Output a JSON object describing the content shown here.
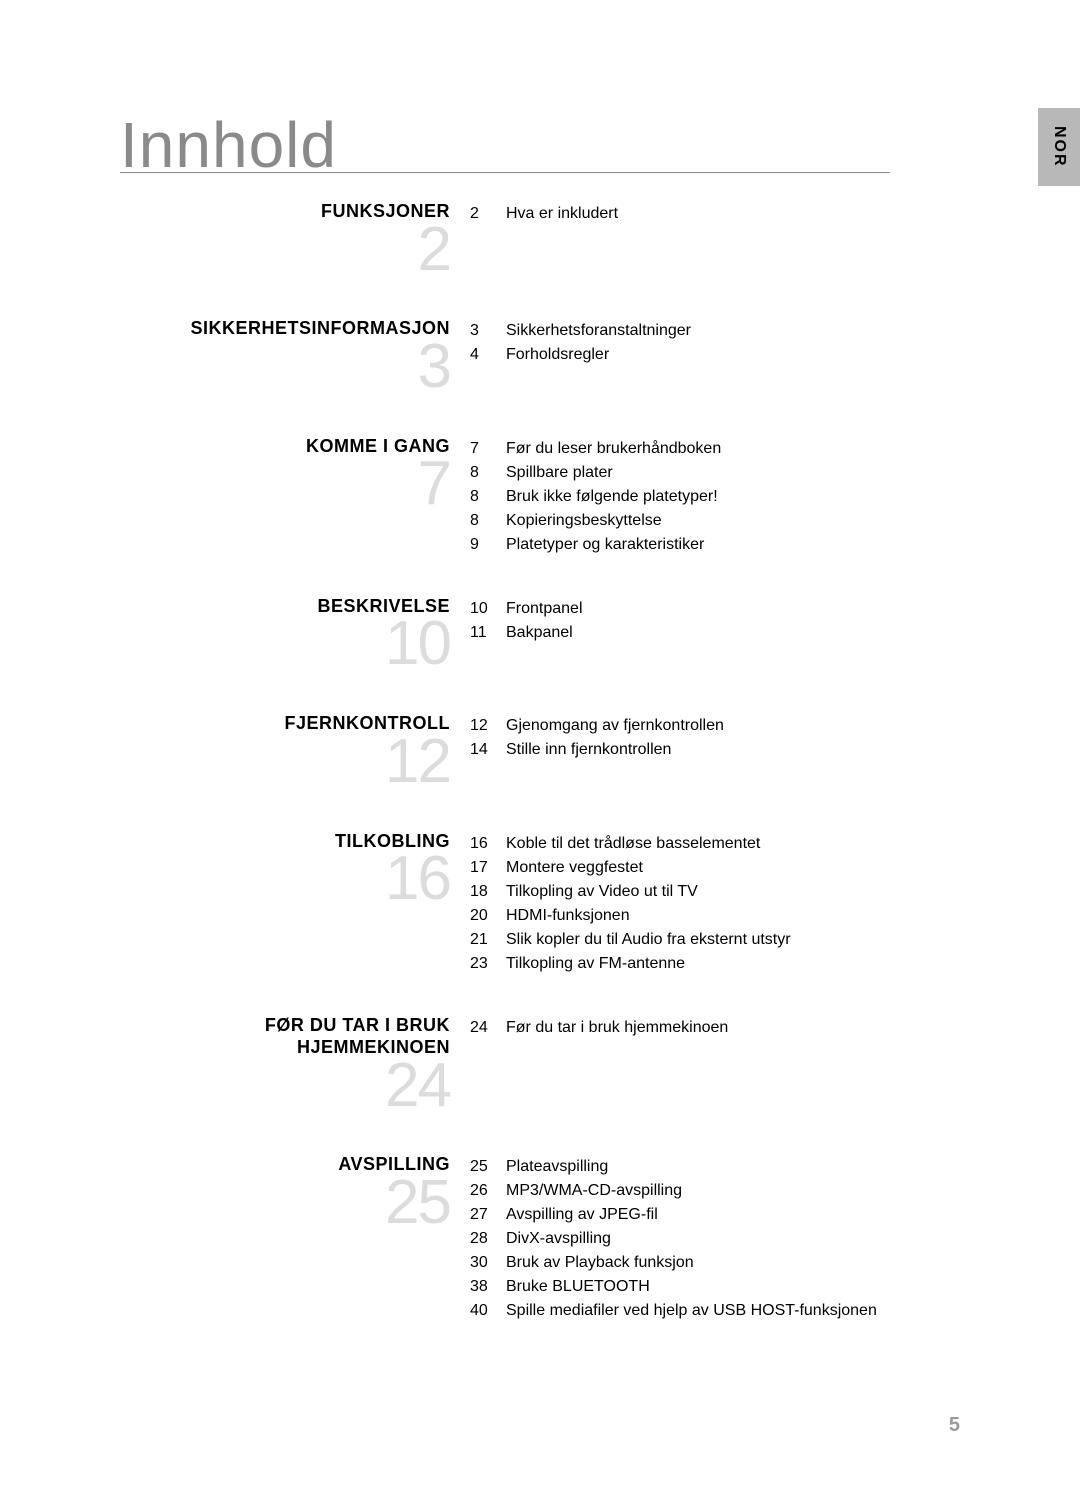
{
  "language_tab": "NOR",
  "page_title": "Innhold",
  "page_number": "5",
  "sections": [
    {
      "title": "FUNKSJONER",
      "start_page": "2",
      "items": [
        {
          "page": "2",
          "label": "Hva er inkludert"
        }
      ]
    },
    {
      "title": "SIKKERHETSINFORMASJON",
      "start_page": "3",
      "items": [
        {
          "page": "3",
          "label": "Sikkerhetsforanstaltninger"
        },
        {
          "page": "4",
          "label": "Forholdsregler"
        }
      ]
    },
    {
      "title": "KOMME I GANG",
      "start_page": "7",
      "items": [
        {
          "page": "7",
          "label": "Før du leser brukerhåndboken"
        },
        {
          "page": "8",
          "label": "Spillbare plater"
        },
        {
          "page": "8",
          "label": "Bruk ikke følgende platetyper!"
        },
        {
          "page": "8",
          "label": "Kopieringsbeskyttelse"
        },
        {
          "page": "9",
          "label": "Platetyper og karakteristiker"
        }
      ]
    },
    {
      "title": "BESKRIVELSE",
      "start_page": "10",
      "items": [
        {
          "page": "10",
          "label": "Frontpanel"
        },
        {
          "page": "11",
          "label": "Bakpanel"
        }
      ]
    },
    {
      "title": "FJERNKONTROLL",
      "start_page": "12",
      "items": [
        {
          "page": "12",
          "label": "Gjenomgang av fjernkontrollen"
        },
        {
          "page": "14",
          "label": "Stille inn fjernkontrollen"
        }
      ]
    },
    {
      "title": "TILKOBLING",
      "start_page": "16",
      "items": [
        {
          "page": "16",
          "label": "Koble til det trådløse basselementet"
        },
        {
          "page": "17",
          "label": "Montere veggfestet"
        },
        {
          "page": "18",
          "label": "Tilkopling av Video ut til TV"
        },
        {
          "page": "20",
          "label": "HDMI-funksjonen"
        },
        {
          "page": "21",
          "label": "Slik kopler du til Audio fra eksternt utstyr"
        },
        {
          "page": "23",
          "label": "Tilkopling av FM-antenne"
        }
      ]
    },
    {
      "title": "FØR DU TAR I BRUK HJEMMEKINOEN",
      "start_page": "24",
      "items": [
        {
          "page": "24",
          "label": "Før du tar i bruk hjemmekinoen"
        }
      ]
    },
    {
      "title": "AVSPILLING",
      "start_page": "25",
      "items": [
        {
          "page": "25",
          "label": "Plateavspilling"
        },
        {
          "page": "26",
          "label": "MP3/WMA-CD-avspilling"
        },
        {
          "page": "27",
          "label": "Avspilling av JPEG-fil"
        },
        {
          "page": "28",
          "label": "DivX-avspilling"
        },
        {
          "page": "30",
          "label": "Bruk av Playback funksjon"
        },
        {
          "page": "38",
          "label": "Bruke BLUETOOTH"
        },
        {
          "page": "40",
          "label": "Spille mediafiler ved hjelp av USB HOST-funksjonen"
        }
      ]
    }
  ]
}
